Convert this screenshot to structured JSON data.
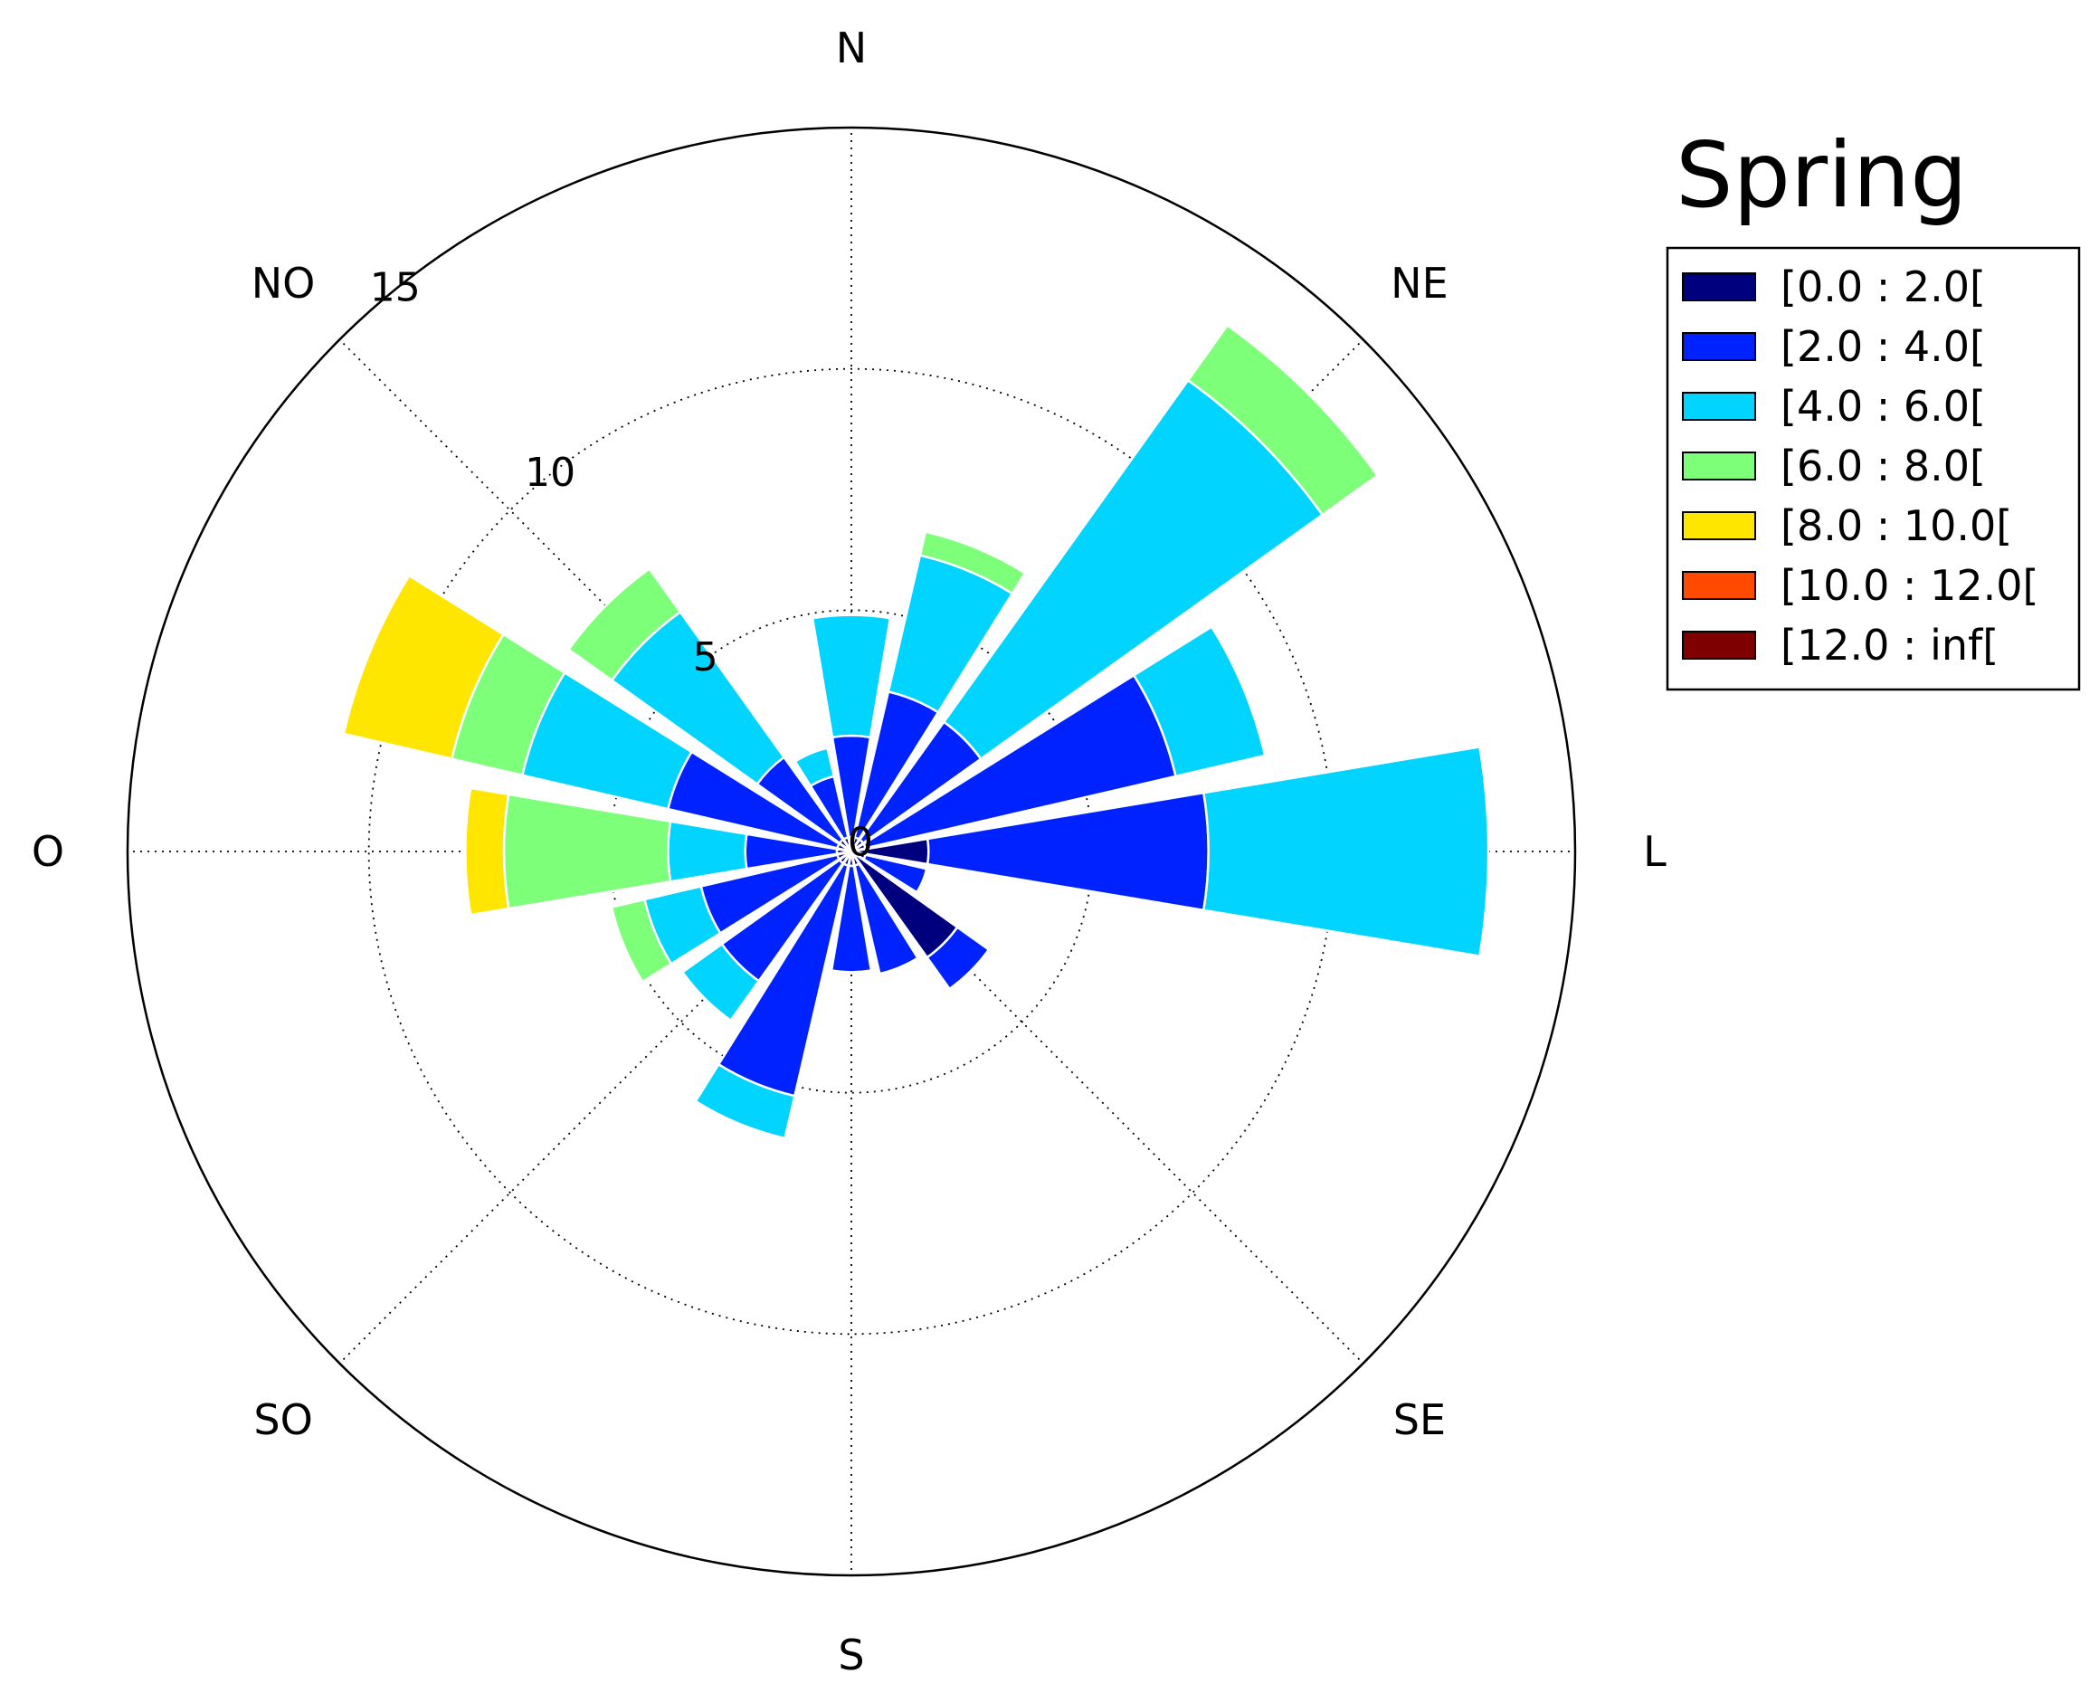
{
  "chart_data": {
    "type": "windrose",
    "title": "Spring",
    "directions": [
      "N",
      "NNE",
      "NE",
      "ENE",
      "L",
      "ESE",
      "SE",
      "SSE",
      "S",
      "SSO",
      "SO",
      "OSO",
      "O",
      "ONO",
      "NO",
      "NNO"
    ],
    "compass_labels": [
      "N",
      "NE",
      "L",
      "SE",
      "S",
      "SO",
      "O",
      "NO"
    ],
    "radial_ticks": [
      "0",
      "5",
      "10",
      "15"
    ],
    "rmax": 15,
    "grid": true,
    "legend_position": "right",
    "bins": [
      {
        "label": "[0.0 : 2.0[",
        "color": "#00007f"
      },
      {
        "label": "[2.0 : 4.0[",
        "color": "#0022ff"
      },
      {
        "label": "[4.0 : 6.0[",
        "color": "#00d4ff"
      },
      {
        "label": "[6.0 : 8.0[",
        "color": "#7dff7a"
      },
      {
        "label": "[8.0 : 10.0[",
        "color": "#ffe600"
      },
      {
        "label": "[10.0 : 12.0[",
        "color": "#ff4a00"
      },
      {
        "label": "[12.0 : inf[",
        "color": "#7f0000"
      }
    ],
    "stacked_values": [
      [
        0.3,
        2.4,
        4.9,
        4.9,
        4.9,
        4.9,
        4.9
      ],
      [
        0.3,
        3.4,
        6.3,
        6.8,
        6.8,
        6.8,
        6.8
      ],
      [
        0.3,
        3.3,
        12.0,
        13.4,
        13.4,
        13.4,
        13.4
      ],
      [
        0.3,
        6.9,
        8.8,
        8.8,
        8.8,
        8.8,
        8.8
      ],
      [
        1.6,
        7.4,
        13.2,
        13.2,
        13.2,
        13.2,
        13.2
      ],
      [
        0.3,
        1.6,
        1.6,
        1.6,
        1.6,
        1.6,
        1.6
      ],
      [
        2.7,
        3.5,
        3.5,
        3.5,
        3.5,
        3.5,
        3.5
      ],
      [
        0.3,
        2.6,
        2.6,
        2.6,
        2.6,
        2.6,
        2.6
      ],
      [
        0.3,
        2.5,
        2.5,
        2.5,
        2.5,
        2.5,
        2.5
      ],
      [
        0.3,
        5.2,
        6.1,
        6.1,
        6.1,
        6.1,
        6.1
      ],
      [
        0.3,
        3.3,
        4.3,
        4.3,
        4.3,
        4.3,
        4.3
      ],
      [
        0.3,
        3.2,
        4.4,
        5.1,
        5.1,
        5.1,
        5.1
      ],
      [
        0.3,
        2.2,
        3.8,
        7.2,
        8.0,
        8.0,
        8.0
      ],
      [
        0.3,
        3.9,
        7.0,
        8.5,
        10.8,
        10.8,
        10.8
      ],
      [
        0.3,
        2.4,
        6.1,
        7.2,
        7.2,
        7.2,
        7.2
      ],
      [
        0.3,
        1.6,
        2.2,
        2.2,
        2.2,
        2.2,
        2.2
      ]
    ]
  }
}
